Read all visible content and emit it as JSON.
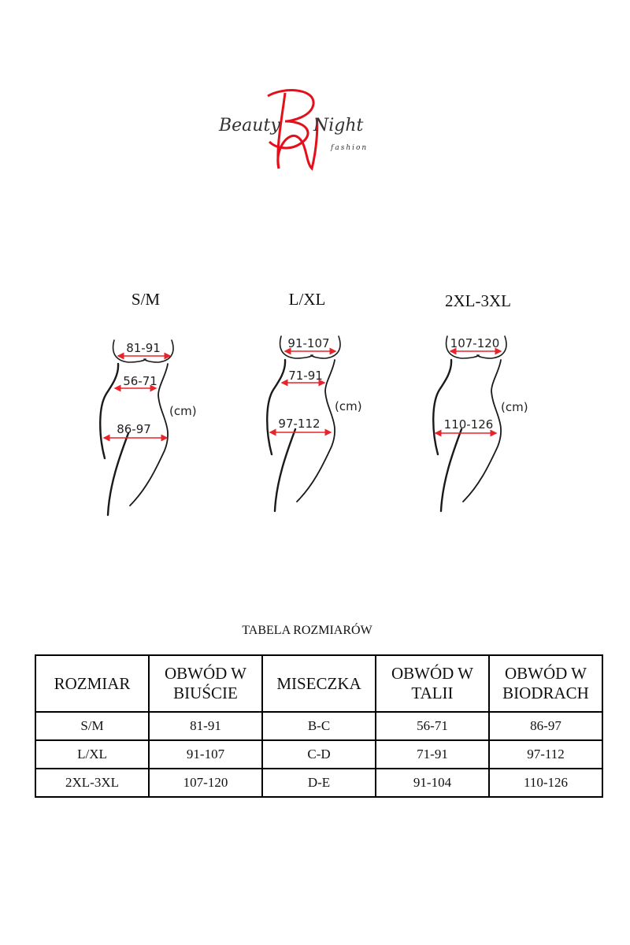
{
  "logo": {
    "text": "Beauty Night fashion",
    "line1": "Beauty",
    "line2": "Night",
    "line3": "fashion",
    "monogram": "BN",
    "accent_color": "#e3101b"
  },
  "figures": [
    {
      "size": "S/M",
      "bust": "81-91",
      "waist": "56-71",
      "hips": "86-97",
      "unit": "(cm)"
    },
    {
      "size": "L/XL",
      "bust": "91-107",
      "waist": "71-91",
      "hips": "97-112",
      "unit": "(cm)"
    },
    {
      "size": "2XL-3XL",
      "bust": "107-120",
      "hips": "110-126",
      "unit": "(cm)"
    }
  ],
  "table": {
    "caption": "TABELA ROZMIARÓW",
    "headers": [
      "ROZMIAR",
      "OBWÓD W BIUŚCIE",
      "MISECZKA",
      "OBWÓD W TALII",
      "OBWÓD W BIODRACH"
    ],
    "rows": [
      [
        "S/M",
        "81-91",
        "B-C",
        "56-71",
        "86-97"
      ],
      [
        "L/XL",
        "91-107",
        "C-D",
        "71-91",
        "97-112"
      ],
      [
        "2XL-3XL",
        "107-120",
        "D-E",
        "91-104",
        "110-126"
      ]
    ]
  },
  "colors": {
    "arrow": "#e8242b",
    "line": "#1a1a1a"
  }
}
